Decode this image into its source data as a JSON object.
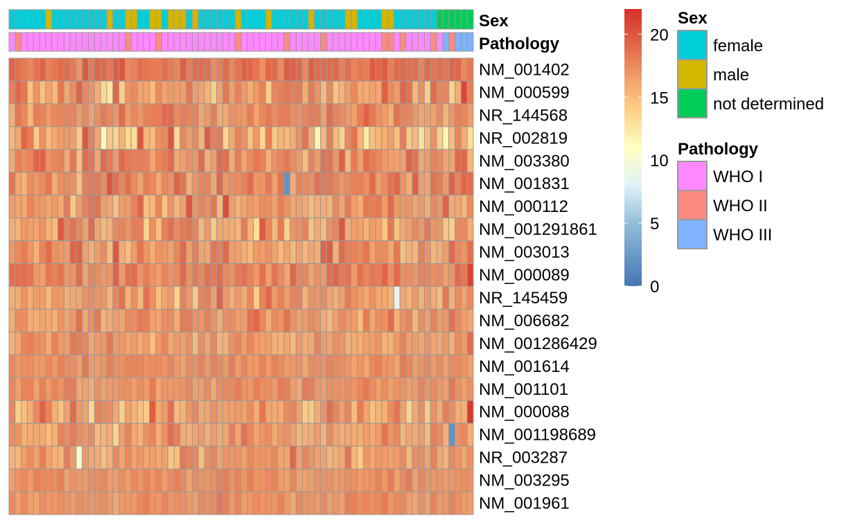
{
  "chart_data": {
    "type": "heatmap",
    "n_samples": 76,
    "color_scale": {
      "min": 0,
      "max": 22,
      "ticks": [
        0,
        5,
        10,
        15,
        20
      ],
      "colors": [
        "#4575b4",
        "#91bfdb",
        "#e0f3f8",
        "#ffffbf",
        "#fdd087",
        "#f2a06b",
        "#e46a4a",
        "#d73027"
      ],
      "stops": [
        0,
        5,
        8,
        11,
        14,
        16.5,
        19,
        22
      ]
    },
    "annotations": [
      {
        "name": "Sex",
        "legend_title": "Sex",
        "levels": [
          {
            "label": "female",
            "color": "#00CED8"
          },
          {
            "label": "male",
            "color": "#D4B500"
          },
          {
            "label": "not determined",
            "color": "#00CC5A"
          }
        ],
        "values": [
          0,
          0,
          0,
          0,
          0,
          0,
          1,
          0,
          0,
          0,
          0,
          0,
          0,
          0,
          0,
          0,
          1,
          0,
          0,
          1,
          1,
          0,
          0,
          1,
          1,
          0,
          1,
          1,
          1,
          0,
          1,
          0,
          0,
          0,
          0,
          0,
          0,
          1,
          0,
          0,
          0,
          0,
          1,
          0,
          0,
          0,
          0,
          0,
          0,
          1,
          0,
          0,
          0,
          0,
          0,
          1,
          1,
          0,
          0,
          0,
          0,
          1,
          1,
          0,
          0,
          0,
          0,
          0,
          0,
          0,
          2,
          2,
          2,
          2,
          2,
          2
        ]
      },
      {
        "name": "Pathology",
        "legend_title": "Pathology",
        "levels": [
          {
            "label": "WHO I",
            "color": "#FF87FF"
          },
          {
            "label": "WHO II",
            "color": "#FA8A82"
          },
          {
            "label": "WHO III",
            "color": "#7FB2FF"
          }
        ],
        "values": [
          0,
          1,
          0,
          0,
          0,
          0,
          0,
          0,
          0,
          0,
          0,
          0,
          0,
          0,
          0,
          0,
          0,
          0,
          0,
          1,
          0,
          0,
          0,
          0,
          1,
          0,
          0,
          0,
          0,
          0,
          0,
          0,
          0,
          0,
          0,
          0,
          0,
          1,
          0,
          0,
          0,
          0,
          0,
          0,
          0,
          1,
          0,
          0,
          0,
          0,
          0,
          1,
          0,
          0,
          0,
          0,
          0,
          0,
          0,
          0,
          0,
          1,
          1,
          0,
          1,
          0,
          0,
          0,
          0,
          1,
          0,
          2,
          1,
          2,
          2,
          2
        ]
      }
    ],
    "rows": [
      {
        "gene": "NM_001402",
        "base": 18.6,
        "spread": 1.2
      },
      {
        "gene": "NM_000599",
        "base": 17.0,
        "spread": 3.2
      },
      {
        "gene": "NR_144568",
        "base": 17.6,
        "spread": 2.0
      },
      {
        "gene": "NR_002819",
        "base": 15.8,
        "spread": 4.0
      },
      {
        "gene": "NM_003380",
        "base": 17.5,
        "spread": 2.2
      },
      {
        "gene": "NM_001831",
        "base": 17.3,
        "spread": 2.0
      },
      {
        "gene": "NM_000112",
        "base": 17.3,
        "spread": 2.4
      },
      {
        "gene": "NM_001291861",
        "base": 16.6,
        "spread": 3.0
      },
      {
        "gene": "NM_003013",
        "base": 17.2,
        "spread": 2.4
      },
      {
        "gene": "NM_000089",
        "base": 17.8,
        "spread": 1.6
      },
      {
        "gene": "NR_145459",
        "base": 16.9,
        "spread": 2.4
      },
      {
        "gene": "NM_006682",
        "base": 17.0,
        "spread": 1.8
      },
      {
        "gene": "NM_001286429",
        "base": 16.9,
        "spread": 1.6
      },
      {
        "gene": "NM_001614",
        "base": 17.3,
        "spread": 1.0
      },
      {
        "gene": "NM_001101",
        "base": 17.3,
        "spread": 1.0
      },
      {
        "gene": "NM_000088",
        "base": 16.3,
        "spread": 2.4
      },
      {
        "gene": "NM_001198689",
        "base": 16.5,
        "spread": 2.0
      },
      {
        "gene": "NR_003287",
        "base": 16.7,
        "spread": 1.8
      },
      {
        "gene": "NM_003295",
        "base": 17.3,
        "spread": 0.9
      },
      {
        "gene": "NM_001961",
        "base": 17.1,
        "spread": 0.9
      }
    ],
    "special_cells": [
      {
        "row": 5,
        "col": 45,
        "value": 2
      },
      {
        "row": 10,
        "col": 63,
        "value": 8.5
      },
      {
        "row": 16,
        "col": 72,
        "value": 2
      },
      {
        "row": 17,
        "col": 11,
        "value": 10
      },
      {
        "row": 15,
        "col": 75,
        "value": 21.5
      },
      {
        "row": 9,
        "col": 75,
        "value": 21
      }
    ]
  }
}
